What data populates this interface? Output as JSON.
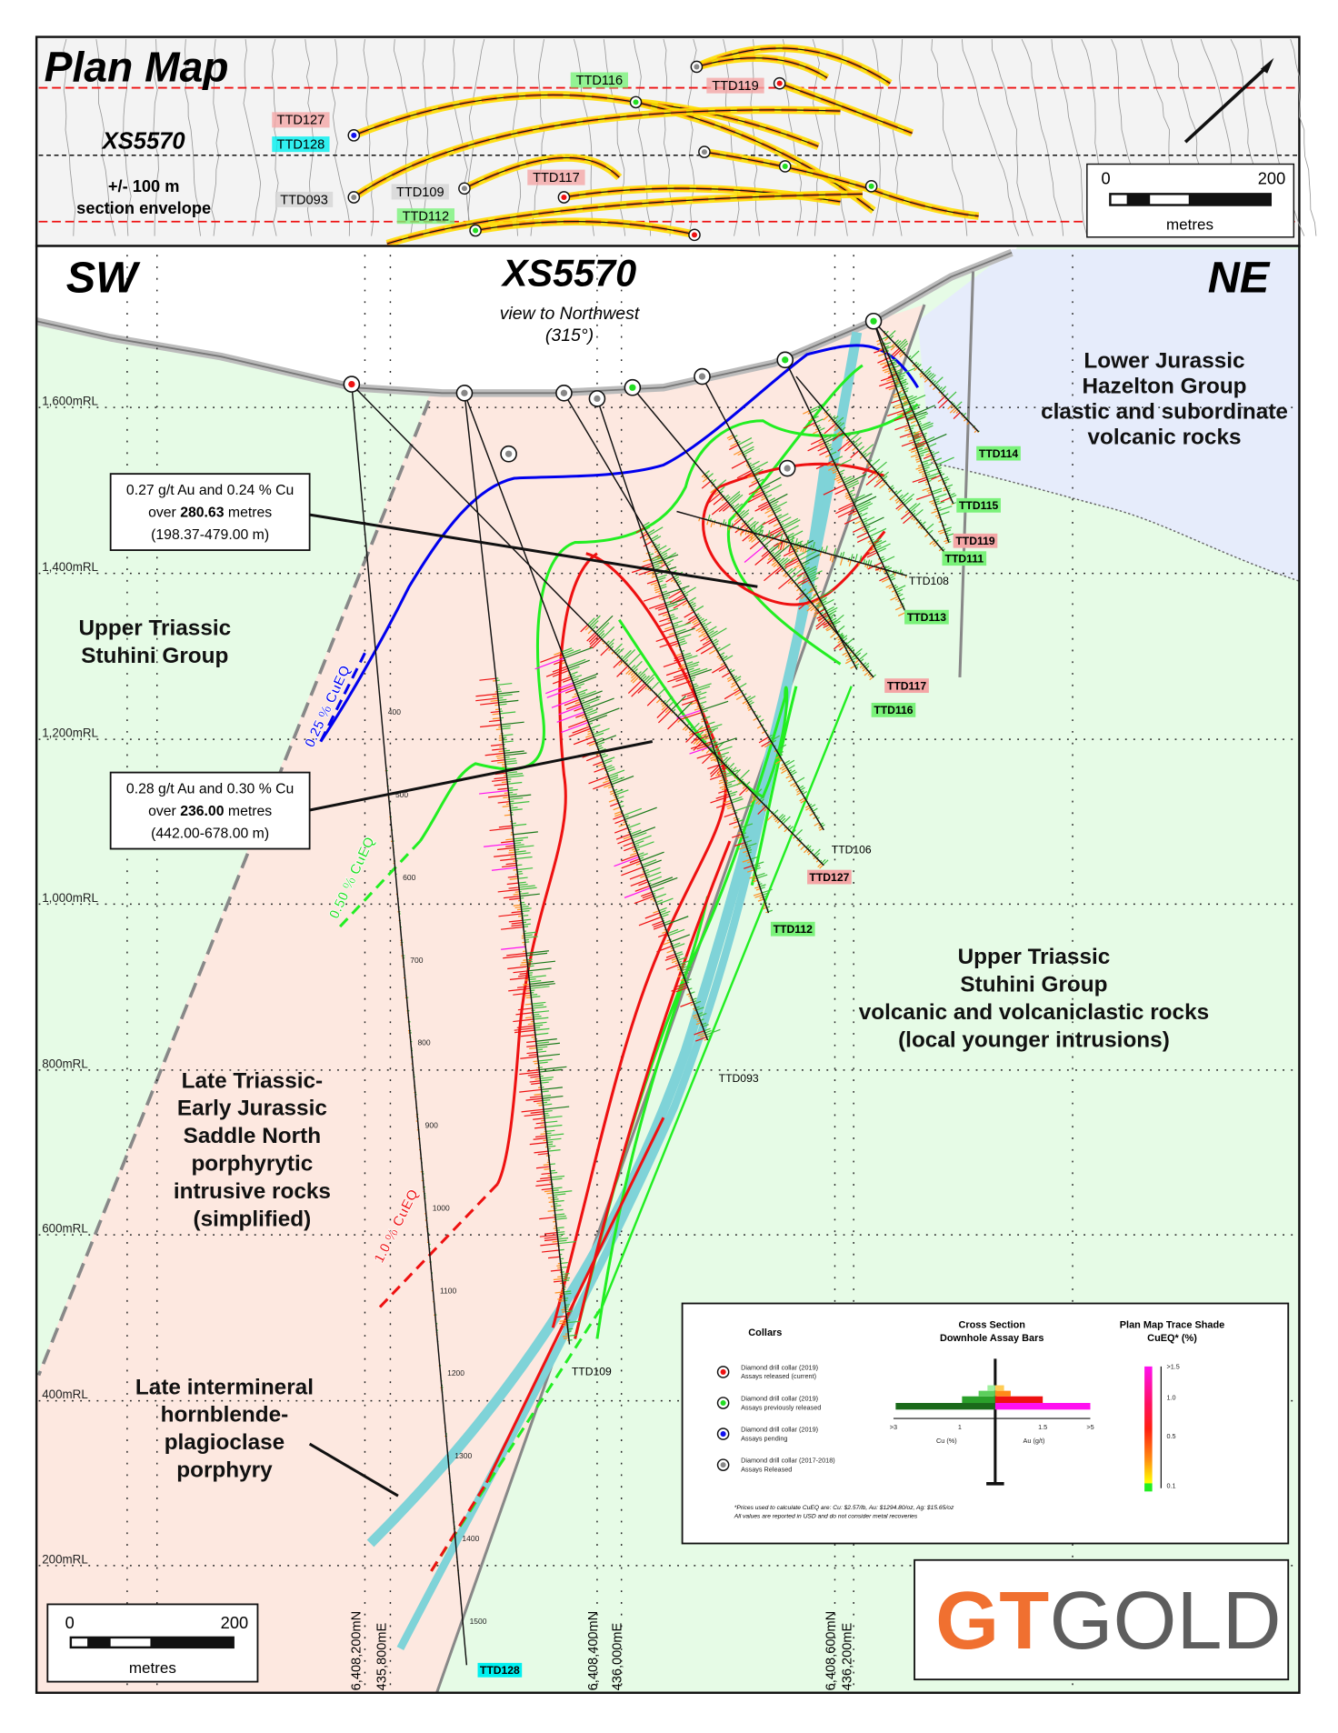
{
  "plan_map": {
    "title": "Plan Map",
    "section_label": "XS5570",
    "envelope": [
      "+/- 100 m",
      "section envelope"
    ],
    "labels": [
      {
        "id": "TTD116",
        "status": "previous"
      },
      {
        "id": "TTD119",
        "status": "current"
      },
      {
        "id": "TTD127",
        "status": "current"
      },
      {
        "id": "TTD128",
        "status": "pending"
      },
      {
        "id": "TTD093",
        "status": "old"
      },
      {
        "id": "TTD109",
        "status": "old"
      },
      {
        "id": "TTD117",
        "status": "current"
      },
      {
        "id": "TTD112",
        "status": "previous"
      }
    ],
    "scale": {
      "min": "0",
      "max": "200",
      "unit": "metres"
    }
  },
  "section": {
    "title": "XS5570",
    "view": "view to Northwest",
    "bearing": "(315°)",
    "sw": "SW",
    "ne": "NE",
    "units": {
      "hazelton": [
        "Lower Jurassic",
        "Hazelton Group",
        "clastic and subordinate",
        "volcanic rocks"
      ],
      "stuhini_left": [
        "Upper Triassic",
        "Stuhini Group"
      ],
      "stuhini_right": [
        "Upper Triassic",
        "Stuhini Group",
        "volcanic and volcaniclastic rocks",
        "(local younger intrusions)"
      ],
      "saddle_north": [
        "Late Triassic-",
        "Early Jurassic",
        "Saddle North",
        "porphyrytic",
        "intrusive rocks",
        "(simplified)"
      ],
      "intermineral": [
        "Late intermineral",
        "hornblende-",
        "plagioclase",
        "porphyry"
      ]
    },
    "intercepts": [
      {
        "line1": "0.27 g/t Au and 0.24 % Cu",
        "pre": "over ",
        "length": "280.63",
        "post": " metres",
        "range": "(198.37-479.00 m)"
      },
      {
        "line1": "0.28 g/t Au and 0.30 % Cu",
        "pre": "over ",
        "length": "236.00",
        "post": " metres",
        "range": "(442.00-678.00 m)"
      }
    ],
    "shells": [
      {
        "label": "0.25 % CuEQ",
        "color": "#0000ee"
      },
      {
        "label": "0.50 % CuEQ",
        "color": "#22dd22"
      },
      {
        "label": "1.0 % CuEQ",
        "color": "#ee1111"
      }
    ],
    "elevations": [
      "1,600mRL",
      "1,400mRL",
      "1,200mRL",
      "1,000mRL",
      "800mRL",
      "600mRL",
      "400mRL",
      "200mRL"
    ],
    "coordinates": [
      {
        "n": "6,408,200mN",
        "e": "435,800mE"
      },
      {
        "n": "6,408,400mN",
        "e": "436,000mE"
      },
      {
        "n": "6,408,600mN",
        "e": "436,200mE"
      }
    ],
    "holes": [
      {
        "id": "TTD114",
        "status": "previous"
      },
      {
        "id": "TTD115",
        "status": "previous"
      },
      {
        "id": "TTD119",
        "status": "current"
      },
      {
        "id": "TTD111",
        "status": "previous"
      },
      {
        "id": "TTD108",
        "status": "old"
      },
      {
        "id": "TTD113",
        "status": "previous"
      },
      {
        "id": "TTD117",
        "status": "current"
      },
      {
        "id": "TTD116",
        "status": "previous"
      },
      {
        "id": "TTD106",
        "status": "old"
      },
      {
        "id": "TTD127",
        "status": "current"
      },
      {
        "id": "TTD112",
        "status": "previous"
      },
      {
        "id": "TTD093",
        "status": "old"
      },
      {
        "id": "TTD109",
        "status": "old"
      },
      {
        "id": "TTD128",
        "status": "pending"
      }
    ],
    "ttd128_depths": [
      "400",
      "500",
      "600",
      "700",
      "800",
      "900",
      "1000",
      "1100",
      "1200",
      "1300",
      "1400",
      "1500"
    ],
    "scale": {
      "min": "0",
      "max": "200",
      "unit": "metres"
    }
  },
  "legend": {
    "collars_title": "Collars",
    "collars": [
      {
        "l1": "Diamond drill collar (2019)",
        "l2": "Assays released (current)",
        "color": "#ee1111"
      },
      {
        "l1": "Diamond drill collar (2019)",
        "l2": "Assays previously released",
        "color": "#22dd22"
      },
      {
        "l1": "Diamond drill collar (2019)",
        "l2": "Assays pending",
        "color": "#1111ee"
      },
      {
        "l1": "Diamond drill collar (2017-2018)",
        "l2": "Assays Released",
        "color": "#888888"
      }
    ],
    "bars_title": [
      "Cross Section",
      "Downhole Assay Bars"
    ],
    "bars_axis": {
      "left": ">3",
      "one": "1",
      "right_mid": "1.5",
      "right": ">5",
      "cu": "Cu (%)",
      "au": "Au (g/t)"
    },
    "shade_title": [
      "Plan Map Trace Shade",
      "CuEQ* (%)"
    ],
    "shade_ticks": [
      ">1.5",
      "1.0",
      "0.5",
      "0.1"
    ],
    "notes": [
      "*Prices used to calculate CuEQ are: Cu: $2.57/lb, Au: $1294.80/oz, Ag: $15.65/oz",
      "All values are reported in USD and do not consider metal recoveries"
    ]
  },
  "logo": {
    "gt": "GT",
    "gold": "GOLD",
    "gt_color": "#f07030",
    "gold_color": "#5e5e5e"
  },
  "colors": {
    "current": "#f4a6a6",
    "previous": "#7af27a",
    "pending": "#00f0f0",
    "pink_zone": "#fde8e0",
    "green_zone": "#e6fbe6",
    "blue_zone": "#e6ecfb",
    "mineral_zone": "#7fd3d8"
  }
}
